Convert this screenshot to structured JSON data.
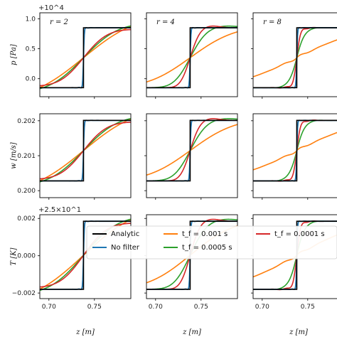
{
  "chart_data": {
    "type": "line",
    "xlabel": "z [m]",
    "columns": [
      {
        "title": "r = 2",
        "r": 2
      },
      {
        "title": "r = 4",
        "r": 4
      },
      {
        "title": "r = 8",
        "r": 8
      }
    ],
    "rows": [
      {
        "ylabel": "p [Pa]",
        "offset_text": "+10^4",
        "ylim": [
          -0.3,
          1.1
        ],
        "yticks": [
          0.0,
          0.5,
          1.0
        ],
        "ytick_labels": [
          "0.0",
          "0.5",
          "1.0"
        ],
        "low": -0.15,
        "high": 0.85
      },
      {
        "ylabel": "w [m/s]",
        "offset_text": "",
        "ylim": [
          0.1998,
          0.2022
        ],
        "yticks": [
          0.2,
          0.201,
          0.202
        ],
        "ytick_labels": [
          "0.200",
          "0.201",
          "0.202"
        ],
        "low": 0.20028,
        "high": 0.20201
      },
      {
        "ylabel": "T [K]",
        "offset_text": "+2.5×10^1",
        "ylim": [
          -0.0023,
          0.0022
        ],
        "yticks": [
          -0.002,
          0.0,
          0.002
        ],
        "ytick_labels": [
          "−0.002",
          "0.000",
          "0.002"
        ],
        "low": -0.0018,
        "high": 0.00185
      }
    ],
    "xlim": [
      0.69,
      0.79
    ],
    "xticks": [
      0.7,
      0.75
    ],
    "xtick_labels": [
      "0.70",
      "0.75"
    ],
    "step_location": 0.738,
    "series": [
      {
        "name": "Analytic",
        "color": "#000000"
      },
      {
        "name": "No filter",
        "color": "#1f77b4"
      },
      {
        "name": "t_f = 0.001 s",
        "color": "#ff7f0e"
      },
      {
        "name": "t_f = 0.0005 s",
        "color": "#2ca02c"
      },
      {
        "name": "t_f = 0.0001 s",
        "color": "#d62728"
      }
    ],
    "legend": {
      "placement": "center-right",
      "entries": [
        {
          "label": "Analytic",
          "color": "#000000"
        },
        {
          "label": "No filter",
          "color": "#1f77b4"
        },
        {
          "label": "t_f = 0.001 s",
          "color": "#ff7f0e"
        },
        {
          "label": "t_f = 0.0005 s",
          "color": "#2ca02c"
        },
        {
          "label": "t_f = 0.0001 s",
          "color": "#d62728"
        }
      ]
    },
    "grid": false
  }
}
